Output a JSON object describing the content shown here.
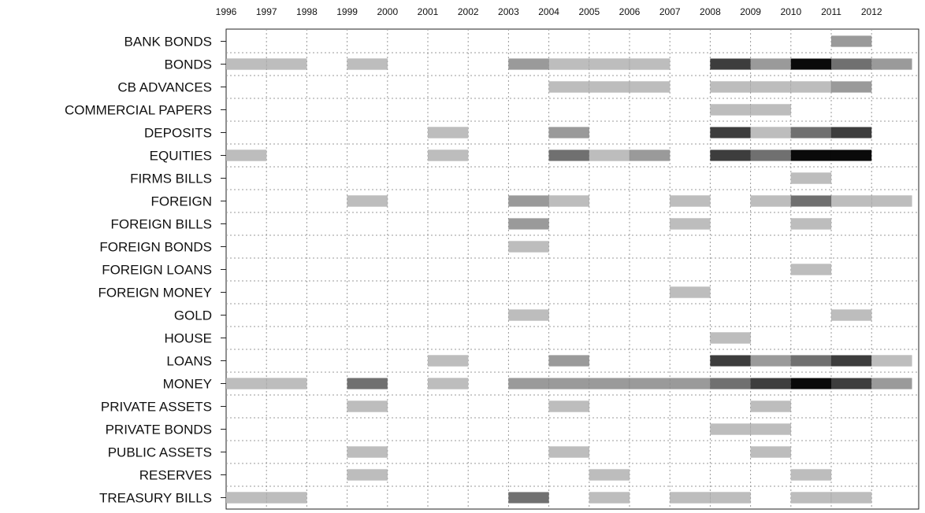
{
  "chart_data": {
    "type": "heatmap",
    "title": "",
    "xlabel": "",
    "ylabel": "",
    "x_ticks": [
      "1996",
      "1997",
      "1998",
      "1999",
      "2000",
      "2001",
      "2002",
      "2003",
      "2004",
      "2005",
      "2006",
      "2007",
      "2008",
      "2009",
      "2010",
      "2011",
      "2012"
    ],
    "xlim": [
      1996,
      2013.0
    ],
    "categories": [
      "BANK BONDS",
      "BONDS",
      "CB ADVANCES",
      "COMMERCIAL PAPERS",
      "DEPOSITS",
      "EQUITIES",
      "FIRMS BILLS",
      "FOREIGN",
      "FOREIGN BILLS",
      "FOREIGN BONDS",
      "FOREIGN LOANS",
      "FOREIGN MONEY",
      "GOLD",
      "HOUSE",
      "LOANS",
      "MONEY",
      "PRIVATE ASSETS",
      "PRIVATE BONDS",
      "PUBLIC ASSETS",
      "RESERVES",
      "TREASURY BILLS"
    ],
    "intensity_scale": "1 = lightest grey, 5 = black",
    "grid": true,
    "cells": {
      "BANK BONDS": [
        [
          2011,
          2
        ]
      ],
      "BONDS": [
        [
          1996,
          1
        ],
        [
          1997,
          1
        ],
        [
          1999,
          1
        ],
        [
          2003,
          2
        ],
        [
          2004,
          1
        ],
        [
          2005,
          1
        ],
        [
          2006,
          1
        ],
        [
          2008,
          4
        ],
        [
          2009,
          2
        ],
        [
          2010,
          5
        ],
        [
          2011,
          3
        ],
        [
          2012,
          2
        ]
      ],
      "CB ADVANCES": [
        [
          2004,
          1
        ],
        [
          2005,
          1
        ],
        [
          2006,
          1
        ],
        [
          2008,
          1
        ],
        [
          2009,
          1
        ],
        [
          2010,
          1
        ],
        [
          2011,
          2
        ]
      ],
      "COMMERCIAL PAPERS": [
        [
          2008,
          1
        ],
        [
          2009,
          1
        ]
      ],
      "DEPOSITS": [
        [
          2001,
          1
        ],
        [
          2004,
          2
        ],
        [
          2008,
          4
        ],
        [
          2009,
          1
        ],
        [
          2010,
          3
        ],
        [
          2011,
          4
        ]
      ],
      "EQUITIES": [
        [
          1996,
          1
        ],
        [
          2001,
          1
        ],
        [
          2004,
          3
        ],
        [
          2005,
          1
        ],
        [
          2006,
          2
        ],
        [
          2008,
          4
        ],
        [
          2009,
          3
        ],
        [
          2010,
          5
        ],
        [
          2011,
          5
        ]
      ],
      "FIRMS BILLS": [
        [
          2010,
          1
        ]
      ],
      "FOREIGN": [
        [
          1999,
          1
        ],
        [
          2003,
          2
        ],
        [
          2004,
          1
        ],
        [
          2007,
          1
        ],
        [
          2009,
          1
        ],
        [
          2010,
          3
        ],
        [
          2011,
          1
        ],
        [
          2012,
          1
        ]
      ],
      "FOREIGN BILLS": [
        [
          2003,
          2
        ],
        [
          2007,
          1
        ],
        [
          2010,
          1
        ]
      ],
      "FOREIGN BONDS": [
        [
          2003,
          1
        ]
      ],
      "FOREIGN LOANS": [
        [
          2010,
          1
        ]
      ],
      "FOREIGN MONEY": [
        [
          2007,
          1
        ]
      ],
      "GOLD": [
        [
          2003,
          1
        ],
        [
          2011,
          1
        ]
      ],
      "HOUSE": [
        [
          2008,
          1
        ]
      ],
      "LOANS": [
        [
          2001,
          1
        ],
        [
          2004,
          2
        ],
        [
          2008,
          4
        ],
        [
          2009,
          2
        ],
        [
          2010,
          3
        ],
        [
          2011,
          4
        ],
        [
          2012,
          1
        ]
      ],
      "MONEY": [
        [
          1996,
          1
        ],
        [
          1997,
          1
        ],
        [
          1999,
          3
        ],
        [
          2001,
          1
        ],
        [
          2003,
          2
        ],
        [
          2004,
          2
        ],
        [
          2005,
          2
        ],
        [
          2006,
          2
        ],
        [
          2007,
          2
        ],
        [
          2008,
          3
        ],
        [
          2009,
          4
        ],
        [
          2010,
          5
        ],
        [
          2011,
          4
        ],
        [
          2012,
          2
        ]
      ],
      "PRIVATE ASSETS": [
        [
          1999,
          1
        ],
        [
          2004,
          1
        ],
        [
          2009,
          1
        ]
      ],
      "PRIVATE BONDS": [
        [
          2008,
          1
        ],
        [
          2009,
          1
        ]
      ],
      "PUBLIC ASSETS": [
        [
          1999,
          1
        ],
        [
          2004,
          1
        ],
        [
          2009,
          1
        ]
      ],
      "RESERVES": [
        [
          1999,
          1
        ],
        [
          2005,
          1
        ],
        [
          2010,
          1
        ]
      ],
      "TREASURY BILLS": [
        [
          1996,
          1
        ],
        [
          1997,
          1
        ],
        [
          2003,
          3
        ],
        [
          2005,
          1
        ],
        [
          2007,
          1
        ],
        [
          2008,
          1
        ],
        [
          2010,
          1
        ],
        [
          2011,
          1
        ]
      ]
    },
    "shade_colors": {
      "1": "#bdbdbd",
      "2": "#9a9a9a",
      "3": "#707070",
      "4": "#3d3d3d",
      "5": "#0a0a0a"
    }
  }
}
